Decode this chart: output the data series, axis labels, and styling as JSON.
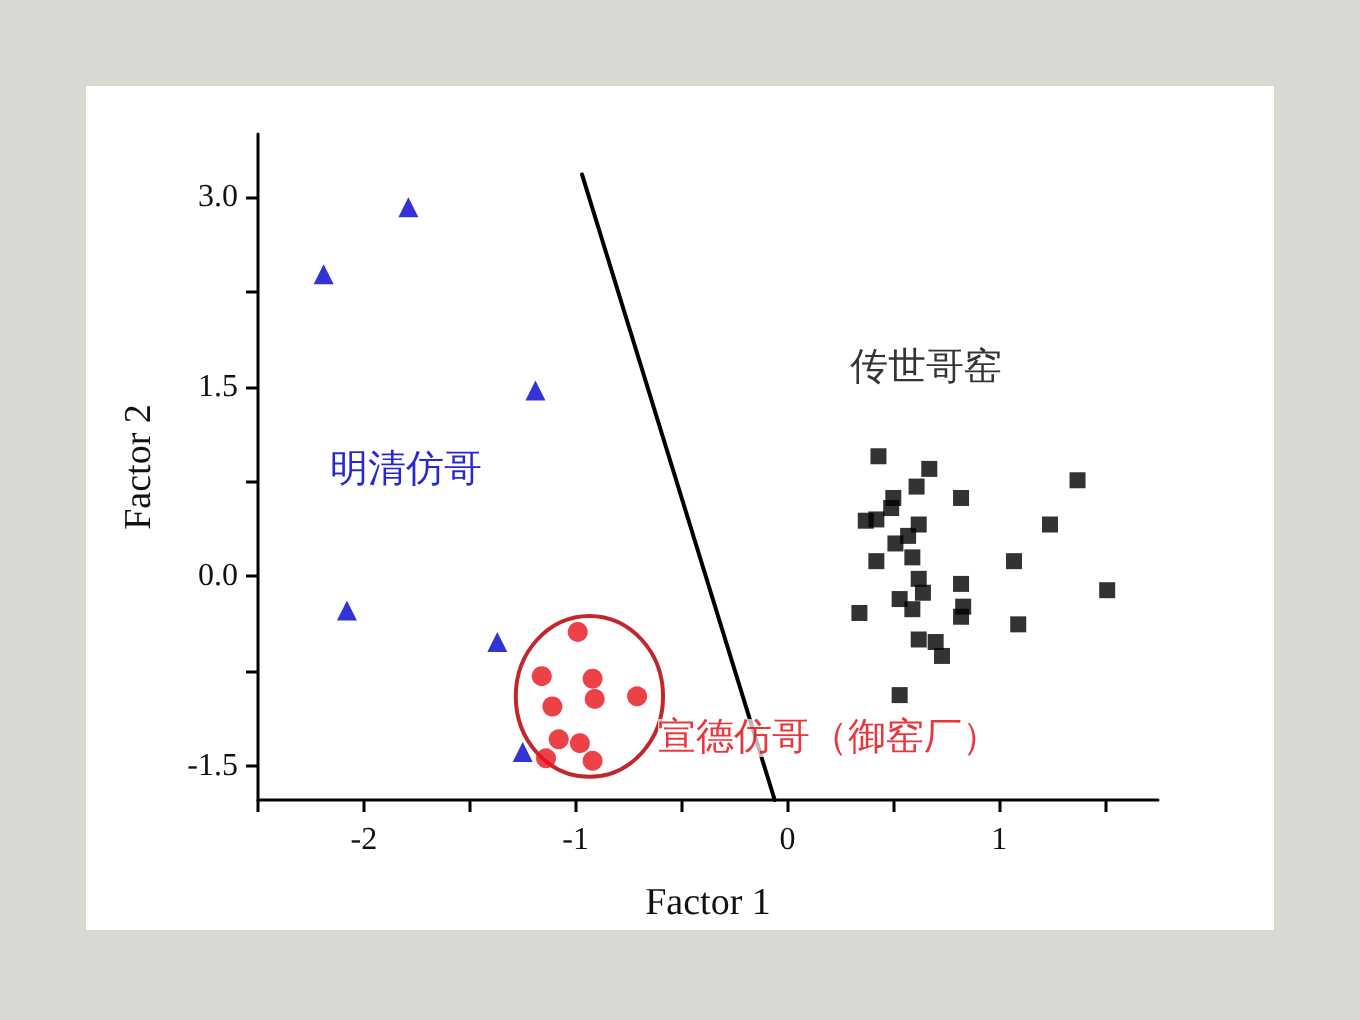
{
  "chart_data": {
    "type": "scatter",
    "xlabel": "Factor 1",
    "ylabel": "Factor 2",
    "xlim": [
      -2.5,
      1.75
    ],
    "ylim": [
      -1.77,
      3.5
    ],
    "xticks": [
      {
        "value": -2.5,
        "label": null
      },
      -2,
      {
        "value": -1.5,
        "label": null
      },
      -1,
      {
        "value": -0.5,
        "label": null
      },
      0,
      {
        "value": 0.5,
        "label": null
      },
      1,
      {
        "value": 1.5,
        "label": null
      }
    ],
    "yticks": [
      {
        "value": -1.5,
        "label": "-1.5"
      },
      {
        "value": -0.75,
        "label": null
      },
      {
        "value": 0,
        "label": "0.0"
      },
      {
        "value": 0.75,
        "label": null
      },
      {
        "value": 1.5,
        "label": "1.5"
      },
      {
        "value": 2.25,
        "label": null
      },
      {
        "value": 3,
        "label": "3.0"
      }
    ],
    "series": [
      {
        "marker": "triangle",
        "color": "#0000cc",
        "x": [
          -1.79,
          -2.19,
          -1.19,
          -2.08,
          -1.37,
          -1.25
        ],
        "values": [
          2.92,
          2.39,
          1.47,
          -0.27,
          -0.52,
          -1.39
        ]
      },
      {
        "marker": "circle",
        "color": "#e8121a",
        "x": [
          -0.99,
          -1.16,
          -0.92,
          -0.91,
          -1.11,
          -0.71,
          -1.08,
          -0.98,
          -1.14,
          -0.92
        ],
        "values": [
          -0.44,
          -0.79,
          -0.81,
          -0.97,
          -1.03,
          -0.95,
          -1.29,
          -1.32,
          -1.44,
          -1.46
        ]
      },
      {
        "marker": "square",
        "color": "#000000",
        "x": [
          0.43,
          0.67,
          1.37,
          0.61,
          0.5,
          0.82,
          0.49,
          0.37,
          0.42,
          0.62,
          1.24,
          0.57,
          0.51,
          0.42,
          0.59,
          1.07,
          0.62,
          0.82,
          0.64,
          1.51,
          0.53,
          0.34,
          0.59,
          0.83,
          0.82,
          1.09,
          0.62,
          0.7,
          0.73,
          0.53
        ],
        "values": [
          0.95,
          0.85,
          0.76,
          0.71,
          0.62,
          0.62,
          0.54,
          0.44,
          0.45,
          0.41,
          0.41,
          0.32,
          0.26,
          0.12,
          0.15,
          0.12,
          -0.02,
          -0.06,
          -0.13,
          -0.11,
          -0.18,
          -0.29,
          -0.26,
          -0.24,
          -0.32,
          -0.38,
          -0.5,
          -0.52,
          -0.63,
          -0.94
        ]
      },
      {
        "type": "line",
        "marker": "none",
        "line_style": "solid",
        "color": "#000000",
        "x": [
          -0.97,
          -0.06
        ],
        "values": [
          3.18,
          -1.77
        ]
      }
    ],
    "annotations": [
      "明清仿哥",
      "宣德仿哥（御窑厂）",
      "传世哥窑"
    ]
  }
}
